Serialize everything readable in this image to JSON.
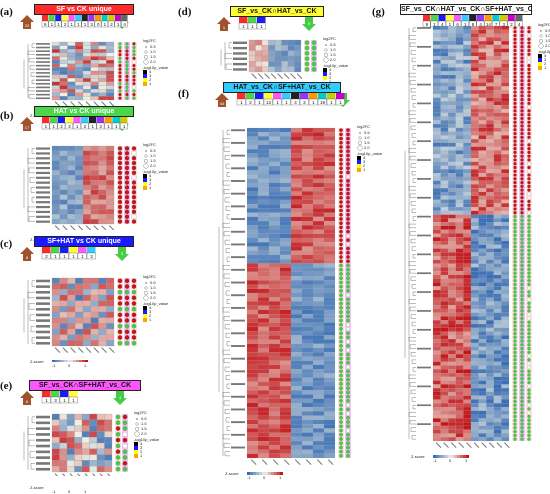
{
  "figure": {
    "panels": [
      {
        "id": "a",
        "label": "(a)",
        "title": "SF vs CK unique",
        "title_bg": "#ff2b2b",
        "title_color": "#ffffff",
        "rows": 16,
        "cols": 8,
        "pattern": "mixed",
        "badge_counts": [
          "6",
          "1",
          "1",
          "2",
          "1",
          "1",
          "1",
          "3",
          "0",
          "1",
          "2",
          "1",
          "4"
        ],
        "badge_main": "22",
        "badge_second": "21"
      },
      {
        "id": "b",
        "label": "(b)",
        "title": "HAT vs CK unique",
        "title_bg": "#4cd64c",
        "title_color": "#ffffff",
        "rows": 16,
        "cols": 8,
        "pattern": "split",
        "badge_counts": [
          "1",
          "1",
          "2",
          "3",
          "1",
          "2",
          "1",
          "3",
          "1",
          "1",
          "1"
        ],
        "badge_main": "17",
        "badge_second": "11"
      },
      {
        "id": "c",
        "label": "(c)",
        "title": "SF+HAT vs CK unique",
        "title_bg": "#1a1aff",
        "title_color": "#ffffff",
        "rows": 12,
        "cols": 8,
        "pattern": "mixed2",
        "badge_counts": [
          "2",
          "1",
          "1",
          "1",
          "1",
          "3"
        ],
        "badge_main": "8",
        "badge_second": "3"
      },
      {
        "id": "d",
        "label": "(d)",
        "title": "SF_vs_CK∩HAT_vs_CK",
        "title_bg": "#ffff33",
        "title_color": "#111111",
        "rows": 6,
        "cols": 8,
        "pattern": "blue",
        "badge_counts": [
          "1",
          "1",
          "1"
        ],
        "badge_main": "1",
        "badge_second": "5"
      },
      {
        "id": "e",
        "label": "(e)",
        "title": "SF_vs_CK∩SF+HAT_vs_CK",
        "title_bg": "#ff55ff",
        "title_color": "#111111",
        "rows": 10,
        "cols": 8,
        "pattern": "mixed",
        "badge_counts": [
          "1",
          "3",
          "1",
          "1"
        ],
        "badge_main": "6",
        "badge_second": "4"
      },
      {
        "id": "f",
        "label": "(f)",
        "title": "HAT_vs_CK∩SF+HAT_vs_CK",
        "title_bg": "#33ccff",
        "title_color": "#111111",
        "rows": 78,
        "cols": 8,
        "pattern": "f",
        "badge_counts": [
          "1",
          "2",
          "1",
          "13",
          "1",
          "1",
          "4",
          "2",
          "1",
          "19",
          "1",
          "1"
        ],
        "badge_main": "44",
        "badge_second": "47"
      },
      {
        "id": "g",
        "label": "(g)",
        "title": "SF_vs_CK∩HAT_vs_CK∩SF+HAT_vs_CK",
        "title_bg": "#ffffff",
        "title_color": "#111111",
        "rows": 110,
        "cols": 10,
        "pattern": "g",
        "badge_counts": [
          "9",
          "1",
          "4",
          "1",
          "6",
          "1",
          "8",
          "4",
          "14",
          "7",
          "3",
          "2",
          "4"
        ],
        "badge_main": "",
        "badge_second": ""
      }
    ],
    "colorbar": {
      "title": "log2FC",
      "ticks": [
        "4",
        "3",
        "2",
        "1"
      ],
      "colors": [
        "#000000",
        "#1a1aff",
        "#ffff00",
        "#ffa500"
      ]
    },
    "pvalue_legend": {
      "title": "-log10p_value",
      "ticks": [
        "0.5",
        "1.0",
        "1.5",
        "2.0"
      ]
    },
    "zscore": {
      "label": "Z-score",
      "ticks": [
        "-1",
        "0",
        "1"
      ]
    },
    "colors": {
      "low": "#3a6fb5",
      "mid": "#f2f2e6",
      "high": "#c4171c",
      "dot_red": "#c4171c",
      "dot_green": "#44cc44",
      "dot_white": "#ffffff"
    }
  }
}
